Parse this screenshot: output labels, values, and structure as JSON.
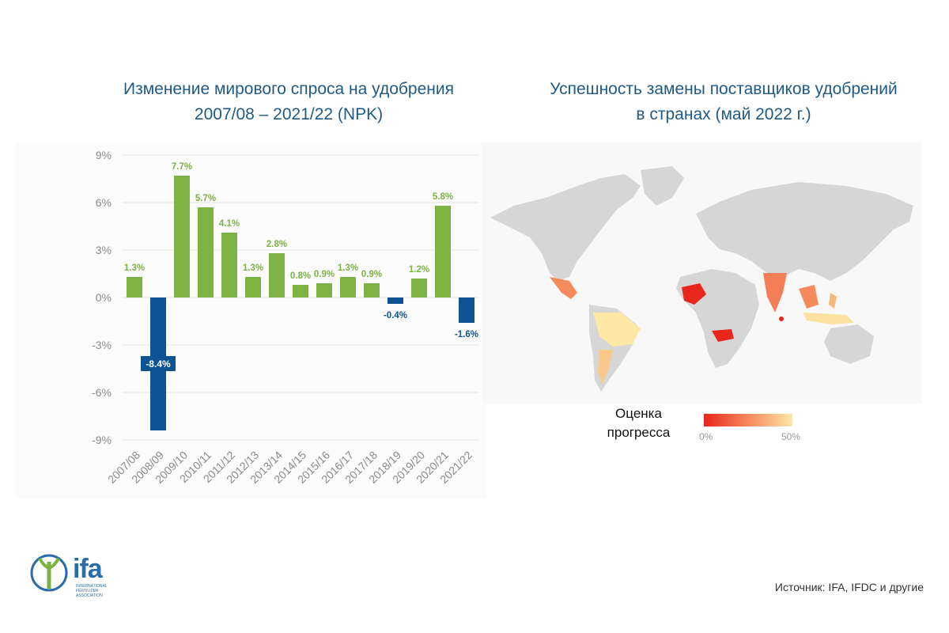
{
  "left_title": {
    "line1": "Изменение мирового спроса на удобрения",
    "line2": "2007/08 – 2021/22 (NPK)"
  },
  "right_title": {
    "line1": "Успешность замены поставщиков удобрений",
    "line2": "в странах (май 2022 г.)"
  },
  "chart_data": {
    "type": "bar",
    "title": "Изменение мирового спроса на удобрения 2007/08 – 2021/22 (NPK)",
    "categories": [
      "2007/08",
      "2008/09",
      "2009/10",
      "2010/11",
      "2011/12",
      "2012/13",
      "2013/14",
      "2014/15",
      "2015/16",
      "2016/17",
      "2017/18",
      "2018/19",
      "2019/20",
      "2020/21",
      "2021/22"
    ],
    "values": [
      1.3,
      -8.4,
      7.7,
      5.7,
      4.1,
      1.3,
      2.8,
      0.8,
      0.9,
      1.3,
      0.9,
      -0.4,
      1.2,
      5.8,
      -1.6
    ],
    "labels": [
      "1.3%",
      "-8.4%",
      "7.7%",
      "5.7%",
      "4.1%",
      "1.3%",
      "2.8%",
      "0.8%",
      "0.9%",
      "1.3%",
      "0.9%",
      "-0.4%",
      "1.2%",
      "5.8%",
      "-1.6%"
    ],
    "ylim": [
      -9,
      9
    ],
    "yticks": [
      9,
      6,
      3,
      0,
      -3,
      -6,
      -9
    ],
    "ytick_labels": [
      "9%",
      "6%",
      "3%",
      "0%",
      "-3%",
      "-6%",
      "-9%"
    ],
    "grid": true,
    "colors": {
      "positive": "#7cb342",
      "negative": "#0d5394",
      "label_positive": "#7cb342"
    }
  },
  "map": {
    "legend_label": "Оценка прогресса",
    "legend_min": "0%",
    "legend_max": "50%",
    "colors": {
      "base": "#d9d9d9",
      "low": "#e8261c",
      "mid": "#f47f56",
      "high": "#fde8a6"
    }
  },
  "logo": {
    "name": "ifa",
    "subtitle": "INTERNATIONAL FERTILIZER ASSOCIATION"
  },
  "source": "Источник: IFA, IFDC и другие"
}
